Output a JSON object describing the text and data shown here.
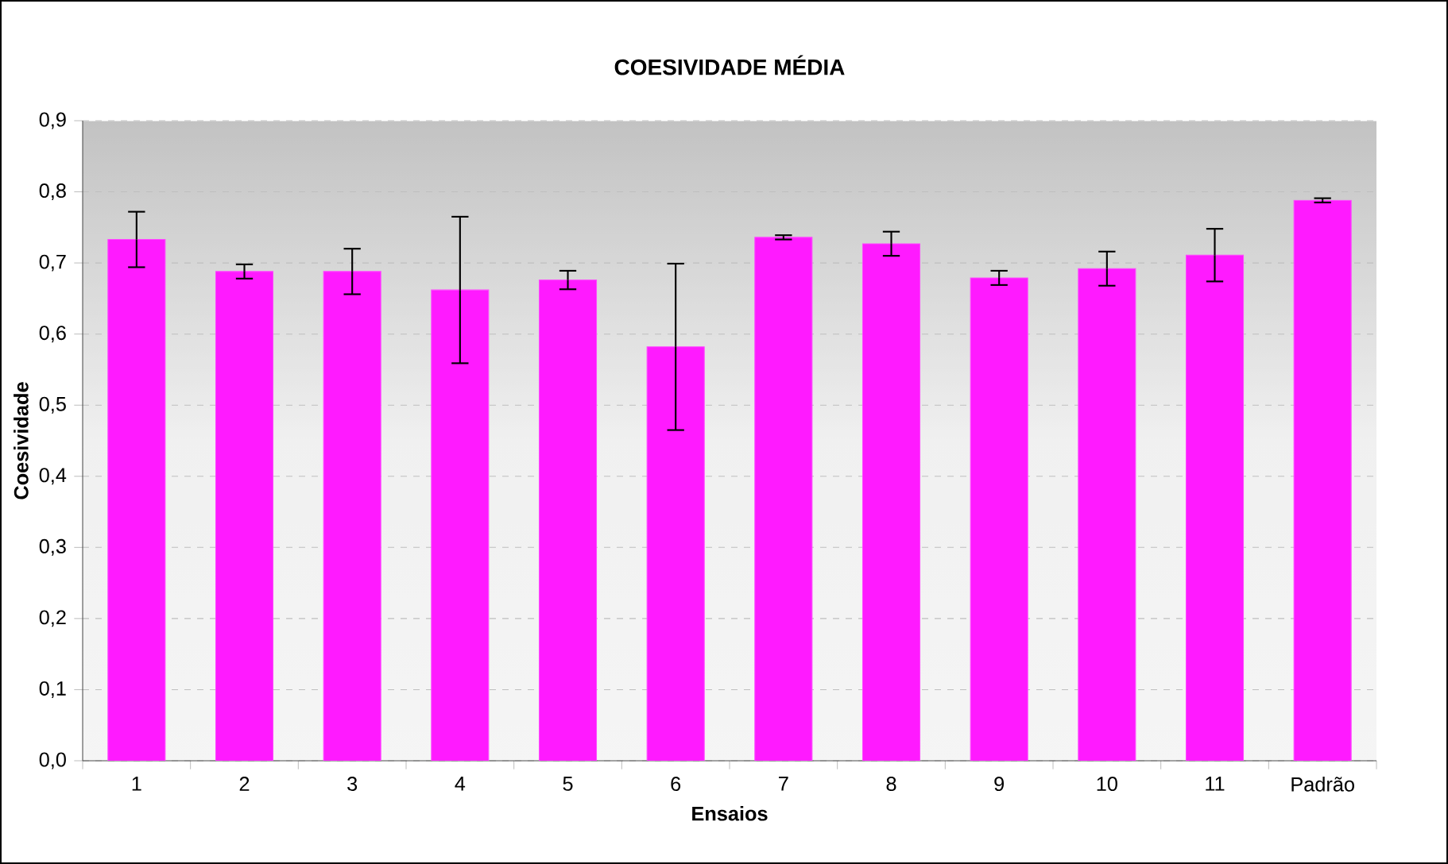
{
  "chart_data": {
    "type": "bar",
    "title": "COESIVIDADE MÉDIA",
    "xlabel": "Ensaios",
    "ylabel": "Coesividade",
    "categories": [
      "1",
      "2",
      "3",
      "4",
      "5",
      "6",
      "7",
      "8",
      "9",
      "10",
      "11",
      "Padrão"
    ],
    "values": [
      0.733,
      0.688,
      0.688,
      0.662,
      0.676,
      0.582,
      0.736,
      0.727,
      0.679,
      0.692,
      0.711,
      0.788
    ],
    "errors": [
      0.039,
      0.01,
      0.032,
      0.103,
      0.013,
      0.117,
      0.003,
      0.017,
      0.01,
      0.024,
      0.037,
      0.003
    ],
    "color": "#ff1aff",
    "ylim": [
      0,
      0.9
    ],
    "yticks": [
      {
        "value": 0,
        "label": "0,0"
      },
      {
        "value": 0.1,
        "label": "0,1"
      },
      {
        "value": 0.2,
        "label": "0,2"
      },
      {
        "value": 0.3,
        "label": "0,3"
      },
      {
        "value": 0.4,
        "label": "0,4"
      },
      {
        "value": 0.5,
        "label": "0,5"
      },
      {
        "value": 0.6,
        "label": "0,6"
      },
      {
        "value": 0.7,
        "label": "0,7"
      },
      {
        "value": 0.8,
        "label": "0,8"
      },
      {
        "value": 0.9,
        "label": "0,9"
      }
    ],
    "grid": "y"
  }
}
